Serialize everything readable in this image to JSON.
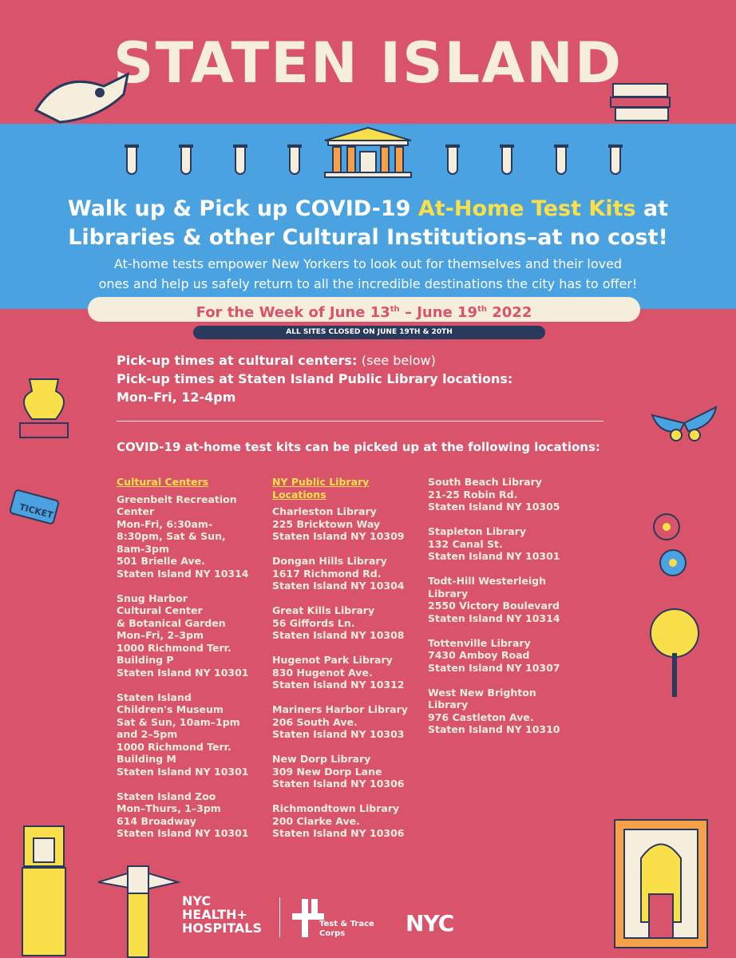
{
  "title": "STATEN ISLAND",
  "headline": {
    "line1_pre": "Walk up & Pick up COVID-19 ",
    "line1_highlight": "At-Home Test Kits",
    "line1_post": " at",
    "line2": "Libraries & other Cultural Institutions–at no cost!"
  },
  "subtext": {
    "line1": "At-home tests empower New Yorkers to look out for themselves and their loved",
    "line2": "ones and help us safely return to all the incredible destinations the city has to offer!"
  },
  "week": {
    "pre": "For the Week of June 13",
    "sup1": "th",
    "mid": " – June 19",
    "sup2": "th",
    "post": " 2022"
  },
  "closed_notice": "ALL SITES CLOSED ON JUNE 19TH & 20TH",
  "pickup": {
    "cultural_label": "Pick-up times at cultural centers:",
    "cultural_note": "(see below)",
    "library_label": "Pick-up times at Staten Island Public Library locations:",
    "library_hours": "Mon–Fri, 12-4pm"
  },
  "locations_heading": "COVID-19 at-home test kits can be picked up at the following locations:",
  "columns": [
    {
      "heading": "Cultural Centers",
      "entries": [
        "Greenbelt Recreation\nCenter\nMon-Fri, 6:30am-\n8:30pm, Sat & Sun,\n8am-3pm\n501 Brielle Ave.\nStaten Island NY 10314",
        "Snug Harbor\nCultural Center\n& Botanical Garden\nMon–Fri, 2–3pm\n1000 Richmond Terr.\nBuilding P\nStaten Island NY 10301",
        "Staten Island\nChildren's Museum\nSat & Sun, 10am–1pm\nand 2–5pm\n1000 Richmond Terr.\nBuilding M\nStaten Island NY 10301",
        "Staten Island Zoo\nMon–Thurs, 1–3pm\n614 Broadway\nStaten Island NY 10301"
      ]
    },
    {
      "heading": "NY Public Library\nLocations",
      "entries": [
        "Charleston Library\n225 Bricktown Way\nStaten Island NY 10309",
        "Dongan Hills Library\n1617 Richmond Rd.\nStaten Island NY 10304",
        "Great Kills Library\n56 Giffords Ln.\nStaten Island NY 10308",
        "Hugenot Park Library\n830 Hugenot Ave.\nStaten Island NY 10312",
        "Mariners Harbor Library\n206 South Ave.\nStaten Island NY 10303",
        "New Dorp Library\n309 New Dorp Lane\nStaten Island NY 10306",
        "Richmondtown Library\n200 Clarke Ave.\nStaten Island NY 10306"
      ]
    },
    {
      "heading": "",
      "entries": [
        "South Beach Library\n21-25 Robin Rd.\nStaten Island NY 10305",
        "Stapleton Library\n132 Canal St.\nStaten Island NY 10301",
        "Todt-Hill Westerleigh\nLibrary\n2550 Victory Boulevard\nStaten Island NY 10314",
        "Tottenville Library\n7430 Amboy Road\nStaten Island NY 10307",
        "West New Brighton\nLibrary\n976 Castleton Ave.\nStaten Island NY 10310"
      ]
    }
  ],
  "logos": {
    "nychh": "NYC\nHEALTH+\nHOSPITALS",
    "ttc": "Test & Trace\nCorps",
    "nyc": "NYC"
  },
  "colors": {
    "background": "#d9536b",
    "band": "#4aa3e0",
    "cream": "#f6eedc",
    "highlight": "#f9e04a",
    "navy": "#2a3a5c"
  }
}
